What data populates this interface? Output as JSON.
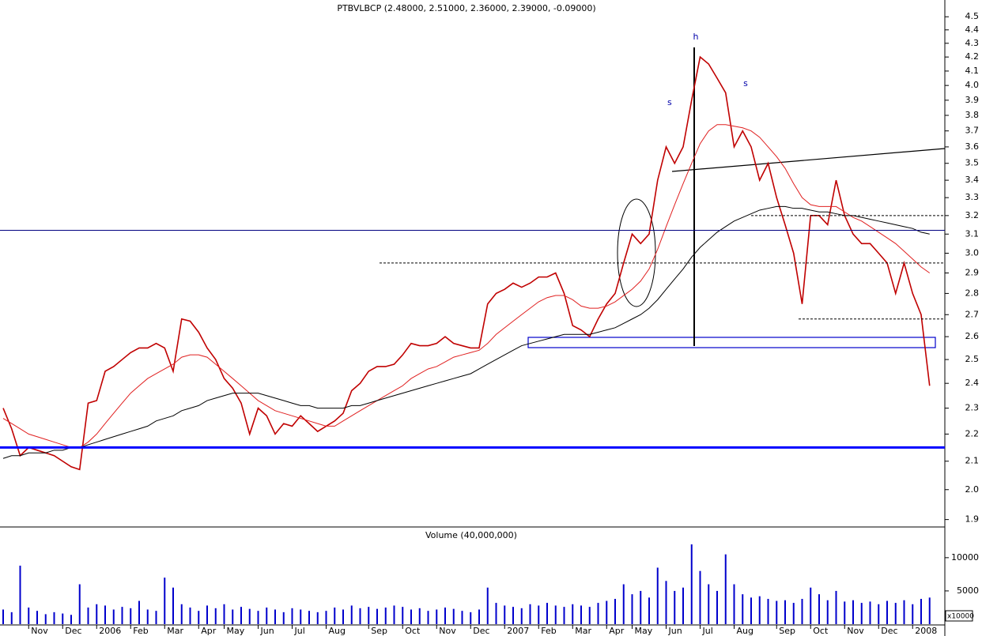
{
  "chart_data": [
    {
      "type": "line",
      "title": "PTBVLBCP (2.48000, 2.51000, 2.36000, 2.39000, -0.09000)",
      "log_scale": true,
      "categories": [
        null,
        null,
        null,
        "Nov",
        null,
        null,
        null,
        "Dec",
        null,
        null,
        null,
        "2006",
        null,
        null,
        null,
        "Feb",
        null,
        null,
        null,
        "Mar",
        null,
        null,
        null,
        "Apr",
        null,
        null,
        "May",
        null,
        null,
        null,
        "Jun",
        null,
        null,
        null,
        "Jul",
        null,
        null,
        null,
        "Aug",
        null,
        null,
        null,
        null,
        "Sep",
        null,
        null,
        null,
        "Oct",
        null,
        null,
        null,
        "Nov",
        null,
        null,
        null,
        "Dec",
        null,
        null,
        null,
        "2007",
        null,
        null,
        null,
        "Feb",
        null,
        null,
        null,
        "Mar",
        null,
        null,
        null,
        "Apr",
        null,
        null,
        "May",
        null,
        null,
        null,
        "Jun",
        null,
        null,
        null,
        "Jul",
        null,
        null,
        null,
        "Aug",
        null,
        null,
        null,
        null,
        "Sep",
        null,
        null,
        null,
        "Oct",
        null,
        null,
        null,
        "Nov",
        null,
        null,
        null,
        "Dec",
        null,
        null,
        null,
        "2008",
        null,
        null
      ],
      "series": [
        {
          "color": "#c00000",
          "values": [
            2.3,
            2.22,
            2.12,
            2.15,
            2.14,
            2.13,
            2.12,
            2.1,
            2.08,
            2.07,
            2.32,
            2.33,
            2.45,
            2.47,
            2.5,
            2.53,
            2.55,
            2.55,
            2.57,
            2.55,
            2.45,
            2.68,
            2.67,
            2.62,
            2.55,
            2.5,
            2.42,
            2.38,
            2.32,
            2.2,
            2.3,
            2.27,
            2.2,
            2.24,
            2.23,
            2.27,
            2.24,
            2.21,
            2.23,
            2.25,
            2.28,
            2.37,
            2.4,
            2.45,
            2.47,
            2.47,
            2.48,
            2.52,
            2.57,
            2.56,
            2.56,
            2.57,
            2.6,
            2.57,
            2.56,
            2.55,
            2.55,
            2.75,
            2.8,
            2.82,
            2.85,
            2.83,
            2.85,
            2.88,
            2.88,
            2.9,
            2.8,
            2.65,
            2.63,
            2.6,
            2.68,
            2.75,
            2.8,
            2.95,
            3.1,
            3.05,
            3.1,
            3.4,
            3.6,
            3.5,
            3.6,
            3.9,
            4.2,
            4.15,
            4.05,
            3.95,
            3.6,
            3.7,
            3.6,
            3.4,
            3.5,
            3.3,
            3.15,
            3.0,
            2.75,
            3.2,
            3.2,
            3.15,
            3.4,
            3.2,
            3.1,
            3.05,
            3.05,
            3.0,
            2.95,
            2.8,
            2.95,
            2.8,
            2.7,
            2.39
          ]
        },
        {
          "color": "#e02020",
          "values": [
            2.26,
            2.24,
            2.22,
            2.2,
            2.19,
            2.18,
            2.17,
            2.16,
            2.15,
            2.15,
            2.17,
            2.2,
            2.24,
            2.28,
            2.32,
            2.36,
            2.39,
            2.42,
            2.44,
            2.46,
            2.48,
            2.51,
            2.52,
            2.52,
            2.51,
            2.48,
            2.45,
            2.42,
            2.39,
            2.36,
            2.33,
            2.31,
            2.29,
            2.28,
            2.27,
            2.26,
            2.25,
            2.24,
            2.23,
            2.23,
            2.25,
            2.27,
            2.29,
            2.31,
            2.33,
            2.35,
            2.37,
            2.39,
            2.42,
            2.44,
            2.46,
            2.47,
            2.49,
            2.51,
            2.52,
            2.53,
            2.54,
            2.57,
            2.61,
            2.64,
            2.67,
            2.7,
            2.73,
            2.76,
            2.78,
            2.79,
            2.79,
            2.77,
            2.74,
            2.73,
            2.73,
            2.74,
            2.76,
            2.79,
            2.82,
            2.86,
            2.92,
            3.02,
            3.14,
            3.26,
            3.38,
            3.5,
            3.62,
            3.7,
            3.74,
            3.74,
            3.73,
            3.72,
            3.7,
            3.66,
            3.6,
            3.54,
            3.47,
            3.38,
            3.3,
            3.26,
            3.25,
            3.25,
            3.25,
            3.22,
            3.19,
            3.17,
            3.14,
            3.11,
            3.08,
            3.05,
            3.01,
            2.97,
            2.93,
            2.9
          ]
        },
        {
          "color": "#000000",
          "values": [
            2.11,
            2.12,
            2.12,
            2.13,
            2.13,
            2.13,
            2.14,
            2.14,
            2.15,
            2.15,
            2.16,
            2.17,
            2.18,
            2.19,
            2.2,
            2.21,
            2.22,
            2.23,
            2.25,
            2.26,
            2.27,
            2.29,
            2.3,
            2.31,
            2.33,
            2.34,
            2.35,
            2.36,
            2.36,
            2.36,
            2.36,
            2.35,
            2.34,
            2.33,
            2.32,
            2.31,
            2.31,
            2.3,
            2.3,
            2.3,
            2.3,
            2.31,
            2.31,
            2.32,
            2.33,
            2.34,
            2.35,
            2.36,
            2.37,
            2.38,
            2.39,
            2.4,
            2.41,
            2.42,
            2.43,
            2.44,
            2.46,
            2.48,
            2.5,
            2.52,
            2.54,
            2.56,
            2.57,
            2.58,
            2.59,
            2.6,
            2.61,
            2.61,
            2.61,
            2.61,
            2.62,
            2.63,
            2.64,
            2.66,
            2.68,
            2.7,
            2.73,
            2.77,
            2.82,
            2.87,
            2.92,
            2.98,
            3.03,
            3.07,
            3.11,
            3.14,
            3.17,
            3.19,
            3.21,
            3.23,
            3.24,
            3.25,
            3.25,
            3.24,
            3.24,
            3.23,
            3.22,
            3.22,
            3.21,
            3.2,
            3.2,
            3.19,
            3.18,
            3.17,
            3.16,
            3.15,
            3.14,
            3.13,
            3.11,
            3.1
          ]
        }
      ],
      "ylim": [
        1.876,
        4.6
      ],
      "yticks": [
        1.9,
        {
          "value": 2,
          "label": "2.0"
        },
        2.1,
        2.2,
        2.3,
        2.4,
        2.5,
        2.6,
        2.7,
        2.8,
        2.9,
        {
          "value": 3,
          "label": "3.0"
        },
        3.1,
        3.2,
        3.3,
        3.4,
        3.5,
        3.6,
        3.7,
        3.8,
        3.9,
        {
          "value": 4,
          "label": "4.0"
        },
        4.1,
        4.2,
        4.3,
        4.4,
        4.5
      ],
      "solid_levels": [
        {
          "value": 2.15,
          "color": "#0000ff"
        },
        {
          "value": 3.12,
          "color": "#000080"
        }
      ],
      "dashed_levels": [
        2.95,
        3.2,
        2.68
      ],
      "annotations": [
        "s",
        "h",
        "s"
      ]
    },
    {
      "type": "bar",
      "title": "Volume (40,000,000)",
      "unit_label": "x10000",
      "color": "#0000cc",
      "values": [
        2200,
        1800,
        8800,
        2500,
        2000,
        1500,
        1800,
        1600,
        1400,
        6000,
        2500,
        3000,
        2800,
        2200,
        2600,
        2400,
        3500,
        2200,
        2000,
        7000,
        5500,
        3000,
        2500,
        2000,
        2800,
        2400,
        3000,
        2200,
        2600,
        2300,
        2000,
        2500,
        2200,
        1800,
        2400,
        2200,
        2000,
        1800,
        2000,
        2500,
        2200,
        2800,
        2400,
        2600,
        2300,
        2500,
        2800,
        2600,
        2200,
        2400,
        2000,
        2200,
        2500,
        2300,
        2000,
        1800,
        2200,
        5500,
        3200,
        2800,
        2600,
        2400,
        3000,
        2800,
        3200,
        2800,
        2600,
        3000,
        2800,
        2600,
        3200,
        3500,
        3800,
        6000,
        4500,
        5000,
        4000,
        8500,
        6500,
        5000,
        5500,
        12000,
        8000,
        6000,
        5000,
        10500,
        6000,
        4500,
        4000,
        4200,
        3800,
        3500,
        3600,
        3200,
        3800,
        5500,
        4500,
        3600,
        5000,
        3400,
        3600,
        3200,
        3400,
        3000,
        3500,
        3200,
        3600,
        3000,
        3800,
        4000
      ],
      "ylim": [
        0,
        14500
      ],
      "yticks": [
        5000,
        10000
      ]
    }
  ]
}
